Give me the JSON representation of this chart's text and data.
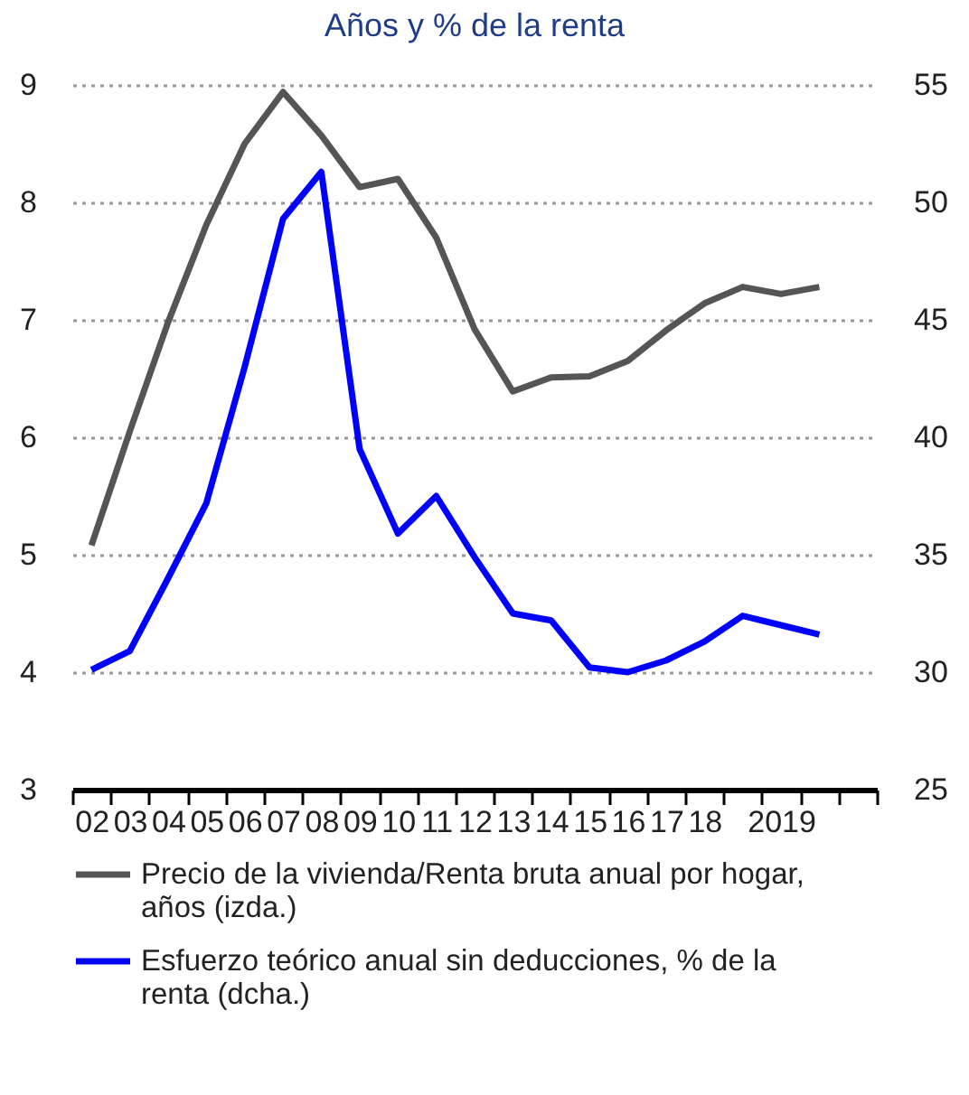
{
  "chart_data": {
    "type": "line",
    "title": "Años y % de la renta",
    "categories": [
      "02",
      "03",
      "04",
      "05",
      "06",
      "07",
      "08",
      "09",
      "10",
      "11",
      "12",
      "13",
      "14",
      "15",
      "16",
      "17",
      "18",
      null,
      "2019",
      null,
      null
    ],
    "series": [
      {
        "name": "Precio de la vivienda/Renta bruta anual por hogar, años (izda.)",
        "color": "#555555",
        "values": [
          5.08,
          6.05,
          6.98,
          7.81,
          8.5,
          8.94,
          8.57,
          8.13,
          8.2,
          7.7,
          6.92,
          6.39,
          6.51,
          6.52,
          6.65,
          6.91,
          7.14,
          7.28,
          7.22,
          7.28,
          null
        ]
      },
      {
        "name": "Esfuerzo teórico anual sin deducciones, % de la renta (dcha.)",
        "color": "#0000ff",
        "axis": "y2",
        "values": [
          30.1,
          30.9,
          34.0,
          37.2,
          43.0,
          49.3,
          51.3,
          39.5,
          35.9,
          37.5,
          34.9,
          32.5,
          32.2,
          30.2,
          30.0,
          30.5,
          31.3,
          32.4,
          32.0,
          31.6,
          null
        ]
      }
    ],
    "ylim": [
      3,
      9
    ],
    "yticks": [
      3,
      4,
      5,
      6,
      7,
      8,
      9
    ],
    "y2lim": [
      25,
      55
    ],
    "y2ticks": [
      25,
      30,
      35,
      40,
      45,
      50,
      55
    ],
    "grid": "y",
    "legend": "bottom"
  }
}
